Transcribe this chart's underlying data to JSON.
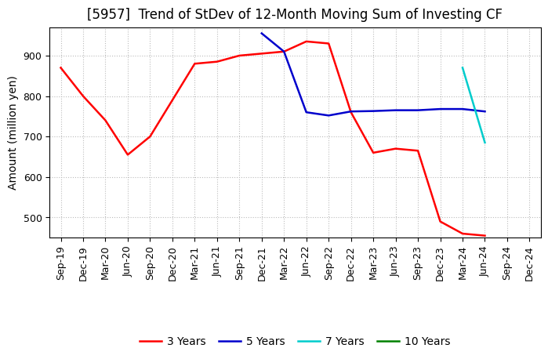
{
  "title": "[5957]  Trend of StDev of 12-Month Moving Sum of Investing CF",
  "ylabel": "Amount (million yen)",
  "background_color": "#ffffff",
  "grid_color": "#bbbbbb",
  "ylim": [
    450,
    970
  ],
  "yticks": [
    500,
    600,
    700,
    800,
    900
  ],
  "series": {
    "3years": {
      "color": "#ff0000",
      "label": "3 Years",
      "dates": [
        "Sep-19",
        "Dec-19",
        "Mar-20",
        "Jun-20",
        "Sep-20",
        "Dec-20",
        "Mar-21",
        "Jun-21",
        "Sep-21",
        "Dec-21",
        "Mar-22",
        "Jun-22",
        "Sep-22",
        "Dec-22",
        "Mar-23",
        "Jun-23",
        "Sep-23",
        "Dec-23",
        "Mar-24",
        "Jun-24"
      ],
      "values": [
        870,
        800,
        740,
        655,
        700,
        790,
        880,
        885,
        900,
        905,
        910,
        935,
        930,
        760,
        660,
        670,
        665,
        490,
        460,
        455
      ]
    },
    "5years": {
      "color": "#0000cc",
      "label": "5 Years",
      "dates": [
        "Dec-21",
        "Mar-22",
        "Jun-22",
        "Sep-22",
        "Dec-22",
        "Mar-23",
        "Jun-23",
        "Sep-23",
        "Dec-23",
        "Mar-24",
        "Jun-24"
      ],
      "values": [
        955,
        910,
        760,
        752,
        762,
        763,
        765,
        765,
        768,
        768,
        762
      ]
    },
    "7years": {
      "color": "#00cccc",
      "label": "7 Years",
      "dates": [
        "Mar-24",
        "Jun-24"
      ],
      "values": [
        870,
        685
      ]
    },
    "10years": {
      "color": "#008000",
      "label": "10 Years",
      "dates": [],
      "values": []
    }
  },
  "xtick_labels": [
    "Sep-19",
    "Dec-19",
    "Mar-20",
    "Jun-20",
    "Sep-20",
    "Dec-20",
    "Mar-21",
    "Jun-21",
    "Sep-21",
    "Dec-21",
    "Mar-22",
    "Jun-22",
    "Sep-22",
    "Dec-22",
    "Mar-23",
    "Jun-23",
    "Sep-23",
    "Dec-23",
    "Mar-24",
    "Jun-24",
    "Sep-24",
    "Dec-24"
  ],
  "title_fontsize": 12,
  "legend_fontsize": 10,
  "axis_fontsize": 10,
  "tick_fontsize": 9
}
